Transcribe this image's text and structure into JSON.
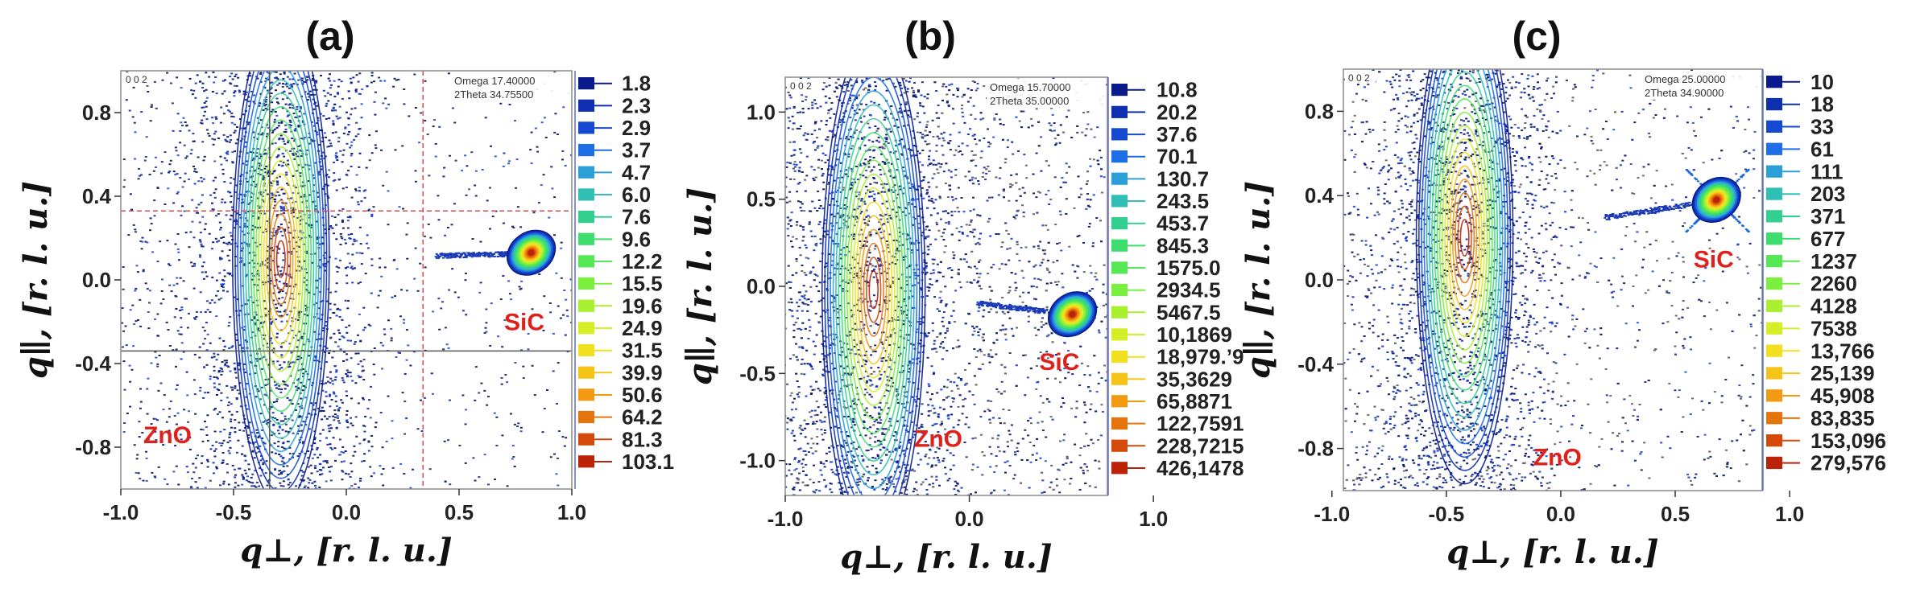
{
  "chart_data": [
    {
      "type": "heatmap",
      "panel_label": "(a)",
      "title": "(a)",
      "reflection": "0 0 2",
      "omega_label": "Omega",
      "omega_value": "17.40000",
      "twotheta_label": "2Theta",
      "twotheta_value": "34.75500",
      "xlabel": "q⊥, [r. l. u.]",
      "ylabel": "q∥, [r. l. u.]",
      "xlim": [
        -1.0,
        1.0
      ],
      "ylim": [
        -1.0,
        1.0
      ],
      "xticks": [
        -1.0,
        -0.5,
        0.0,
        0.5,
        1.0
      ],
      "xtick_labels": [
        "-1.0",
        "-0.5",
        "0.0",
        "0.5",
        "1.0"
      ],
      "yticks": [
        -0.8,
        -0.4,
        0.0,
        0.4,
        0.8
      ],
      "ytick_labels": [
        "-0.8",
        "-0.4",
        "0.0",
        "0.4",
        "0.8"
      ],
      "colorbar_labels": [
        "1.8",
        "2.3",
        "2.9",
        "3.7",
        "4.7",
        "6.0",
        "7.6",
        "9.6",
        "12.2",
        "15.5",
        "19.6",
        "24.9",
        "31.5",
        "39.9",
        "50.6",
        "64.2",
        "81.3",
        "103.1"
      ],
      "colorbar_colors": [
        "#0a1a8c",
        "#0d2fb0",
        "#1449d0",
        "#1e6ee8",
        "#2a9fd8",
        "#2fbfb5",
        "#33cf90",
        "#3ede6e",
        "#55e855",
        "#7bef3e",
        "#a8f030",
        "#d4ef28",
        "#f2e020",
        "#f6c318",
        "#f39a12",
        "#e5740d",
        "#d44a0a",
        "#bb2208"
      ],
      "zno_peak": {
        "qperp": -0.29,
        "qpar": 0.1
      },
      "sic_peak": {
        "qperp": 0.82,
        "qpar": 0.13
      },
      "guide_lines_h": [
        0.33,
        -0.34
      ],
      "guide_lines_v": [
        -0.34,
        0.34
      ],
      "annotations": [
        {
          "text": "ZnO",
          "qperp": -0.9,
          "qpar": -0.78
        },
        {
          "text": "SiC",
          "qperp": 0.7,
          "qpar": -0.24
        }
      ]
    },
    {
      "type": "heatmap",
      "panel_label": "(b)",
      "title": "(b)",
      "reflection": "0 0 2",
      "omega_label": "Omega",
      "omega_value": "15.70000",
      "twotheta_label": "2Theta",
      "twotheta_value": "35.00000",
      "xlabel": "q⊥, [r. l. u.]",
      "ylabel": "q∥, [r. l. u.]",
      "xlim": [
        -1.0,
        0.75
      ],
      "ylim": [
        -1.2,
        1.2
      ],
      "xticks": [
        -1.0,
        0.0,
        1.0
      ],
      "xtick_labels": [
        "-1.0",
        "0.0",
        "1.0"
      ],
      "yticks": [
        -1.0,
        -0.5,
        0.0,
        0.5,
        1.0
      ],
      "ytick_labels": [
        "-1.0",
        "-0.5",
        "0.0",
        "0.5",
        "1.0"
      ],
      "colorbar_labels": [
        "10.8",
        "20.2",
        "37.6",
        "70.1",
        "130.7",
        "243.5",
        "453.7",
        "845.3",
        "1575.0",
        "2934.5",
        "5467.5",
        "10,1869",
        "18,979.’9",
        "35,3629",
        "65,8871",
        "122,7591",
        "228,7215",
        "426,1478"
      ],
      "colorbar_colors": [
        "#0a1a8c",
        "#0d2fb0",
        "#1449d0",
        "#1e6ee8",
        "#2a9fd8",
        "#2fbfb5",
        "#33cf90",
        "#3ede6e",
        "#55e855",
        "#7bef3e",
        "#a8f030",
        "#d4ef28",
        "#f2e020",
        "#f6c318",
        "#f39a12",
        "#e5740d",
        "#d44a0a",
        "#bb2208"
      ],
      "zno_peak": {
        "qperp": -0.52,
        "qpar": -0.02
      },
      "sic_peak": {
        "qperp": 0.56,
        "qpar": -0.16
      },
      "guide_lines_h": [],
      "guide_lines_v": [],
      "annotations": [
        {
          "text": "ZnO",
          "qperp": -0.3,
          "qpar": -0.92
        },
        {
          "text": "SiC",
          "qperp": 0.38,
          "qpar": -0.48
        }
      ]
    },
    {
      "type": "heatmap",
      "panel_label": "(c)",
      "title": "(c)",
      "reflection": "0 0 2",
      "omega_label": "Omega",
      "omega_value": "25.00000",
      "twotheta_label": "2Theta",
      "twotheta_value": "34.90000",
      "xlabel": "q⊥, [r. l. u.]",
      "ylabel": "q∥, [r. l. u.]",
      "xlim": [
        -0.95,
        0.88
      ],
      "ylim": [
        -1.0,
        1.0
      ],
      "xticks": [
        -1.0,
        -0.5,
        0.0,
        0.5,
        1.0
      ],
      "xtick_labels": [
        "-1.0",
        "-0.5",
        "0.0",
        "0.5",
        "1.0"
      ],
      "yticks": [
        -0.8,
        -0.4,
        0.0,
        0.4,
        0.8
      ],
      "ytick_labels": [
        "-0.8",
        "-0.4",
        "0.0",
        "0.4",
        "0.8"
      ],
      "colorbar_labels": [
        "10",
        "18",
        "33",
        "61",
        "111",
        "203",
        "371",
        "677",
        "1237",
        "2260",
        "4128",
        "7538",
        "13,766",
        "25,139",
        "45,908",
        "83,835",
        "153,096",
        "279,576"
      ],
      "colorbar_colors": [
        "#0a1a8c",
        "#0d2fb0",
        "#1449d0",
        "#1e6ee8",
        "#2a9fd8",
        "#2fbfb5",
        "#33cf90",
        "#3ede6e",
        "#55e855",
        "#7bef3e",
        "#a8f030",
        "#d4ef28",
        "#f2e020",
        "#f6c318",
        "#f39a12",
        "#e5740d",
        "#d44a0a",
        "#bb2208"
      ],
      "zno_peak": {
        "qperp": -0.42,
        "qpar": 0.2
      },
      "sic_peak": {
        "qperp": 0.68,
        "qpar": 0.38
      },
      "guide_lines_h": [],
      "guide_lines_v": [],
      "annotations": [
        {
          "text": "ZnO",
          "qperp": -0.12,
          "qpar": -0.88
        },
        {
          "text": "SiC",
          "qperp": 0.58,
          "qpar": 0.06
        }
      ]
    }
  ]
}
